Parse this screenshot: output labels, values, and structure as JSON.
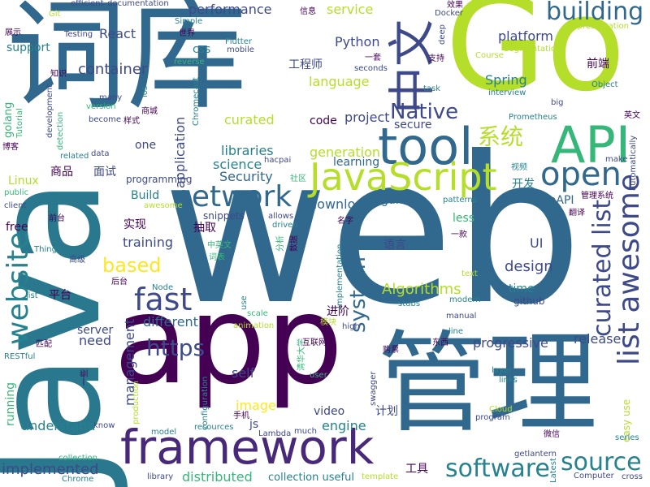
{
  "palette": [
    "#440154",
    "#482878",
    "#3e4989",
    "#31688e",
    "#26828e",
    "#1f9e89",
    "#35b779",
    "#6ece58",
    "#b5de2b",
    "#fde725"
  ],
  "words": [
    {
      "text": "web",
      "color": "#31688e"
    },
    {
      "text": "Java",
      "color": "#2a788e"
    },
    {
      "text": "app",
      "color": "#440154"
    },
    {
      "text": "管理",
      "color": "#31688e"
    },
    {
      "text": "词库",
      "color": "#31688e"
    },
    {
      "text": "Go",
      "color": "#b5de2b"
    },
    {
      "text": "framework",
      "color": "#482878"
    },
    {
      "text": "tool",
      "color": "#31688e"
    },
    {
      "text": "API",
      "color": "#35b779"
    },
    {
      "text": "JavaScript",
      "color": "#b5de2b"
    },
    {
      "text": "中文",
      "color": "#3e4989"
    },
    {
      "text": "network",
      "color": "#31688e"
    },
    {
      "text": "open",
      "color": "#31688e"
    },
    {
      "text": "website",
      "color": "#26828e"
    },
    {
      "text": "list awesome",
      "color": "#3e4989"
    },
    {
      "text": "fast",
      "color": "#3e4989"
    },
    {
      "text": "curated list",
      "color": "#3e4989"
    },
    {
      "text": "software",
      "color": "#26828e"
    },
    {
      "text": "source",
      "color": "#26828e"
    },
    {
      "text": "https",
      "color": "#3e4989"
    },
    {
      "text": "Native",
      "color": "#3e4989"
    },
    {
      "text": "system",
      "color": "#31688e"
    },
    {
      "text": "building",
      "color": "#31688e"
    },
    {
      "text": "based",
      "color": "#fde725"
    },
    {
      "text": "系统",
      "color": "#b5de2b"
    },
    {
      "text": "implemented",
      "color": "#3e4989"
    },
    {
      "text": "Algorithms",
      "color": "#b5de2b"
    },
    {
      "text": "container",
      "color": "#3e4989"
    },
    {
      "text": "platform",
      "color": "#3e4989"
    },
    {
      "text": "performance",
      "color": "#3e4989"
    },
    {
      "text": "language",
      "color": "#b5de2b"
    },
    {
      "text": "management",
      "color": "#3e4989"
    },
    {
      "text": "design",
      "color": "#3e4989"
    },
    {
      "text": "application",
      "color": "#3e4989"
    },
    {
      "text": "progressive",
      "color": "#3e4989"
    },
    {
      "text": "service",
      "color": "#b5de2b"
    },
    {
      "text": "curated",
      "color": "#b5de2b"
    },
    {
      "text": "project",
      "color": "#3e4989"
    },
    {
      "text": "libraries",
      "color": "#26828e"
    },
    {
      "text": "secure",
      "color": "#3e4989"
    },
    {
      "text": "generation",
      "color": "#b5de2b"
    },
    {
      "text": "download",
      "color": "#31688e"
    },
    {
      "text": "science",
      "color": "#26828e"
    },
    {
      "text": "code",
      "color": "#440154"
    },
    {
      "text": "engine",
      "color": "#26828e"
    },
    {
      "text": "release",
      "color": "#3e4989"
    },
    {
      "text": "React",
      "color": "#3e4989"
    },
    {
      "text": "Python",
      "color": "#3e4989"
    },
    {
      "text": "Spring",
      "color": "#26828e"
    },
    {
      "text": "training",
      "color": "#3e4989"
    },
    {
      "text": "Security",
      "color": "#31688e"
    },
    {
      "text": "different",
      "color": "#31688e"
    },
    {
      "text": "learning",
      "color": "#31688e"
    },
    {
      "text": "video",
      "color": "#3e4989"
    },
    {
      "text": "image",
      "color": "#fde725"
    },
    {
      "text": "understand",
      "color": "#26828e"
    },
    {
      "text": "distributed",
      "color": "#35b779"
    },
    {
      "text": "collection useful",
      "color": "#26828e"
    },
    {
      "text": "server",
      "color": "#3e4989"
    },
    {
      "text": "need",
      "color": "#3e4989"
    },
    {
      "text": "self",
      "color": "#3e4989"
    },
    {
      "text": "running",
      "color": "#35b779"
    },
    {
      "text": "guide",
      "color": "#31688e"
    },
    {
      "text": "Build",
      "color": "#26828e"
    },
    {
      "text": "one",
      "color": "#3e4989"
    },
    {
      "text": "time",
      "color": "#26828e"
    },
    {
      "text": "github",
      "color": "#3e4989"
    },
    {
      "text": "OpenAPI",
      "color": "#31688e"
    },
    {
      "text": "UI",
      "color": "#3e4989"
    },
    {
      "text": "less",
      "color": "#35b779"
    },
    {
      "text": "free",
      "color": "#440154"
    },
    {
      "text": "css",
      "color": "#26828e"
    },
    {
      "text": "js",
      "color": "#3e4989"
    },
    {
      "text": "前端",
      "color": "#440154"
    },
    {
      "text": "工程师",
      "color": "#3e4989"
    },
    {
      "text": "商品",
      "color": "#440154"
    },
    {
      "text": "面试",
      "color": "#3e4989"
    },
    {
      "text": "实现",
      "color": "#440154"
    },
    {
      "text": "抽取",
      "color": "#440154"
    },
    {
      "text": "语言",
      "color": "#3e4989"
    },
    {
      "text": "进阶",
      "color": "#440154"
    },
    {
      "text": "开发",
      "color": "#26828e"
    },
    {
      "text": "平台",
      "color": "#440154"
    },
    {
      "text": "计划",
      "color": "#3e4989"
    },
    {
      "text": "工具",
      "color": "#440154"
    },
    {
      "text": "golang",
      "color": "#35b779"
    },
    {
      "text": "Linux",
      "color": "#b5de2b"
    },
    {
      "text": "support",
      "color": "#26828e"
    },
    {
      "text": "programming",
      "color": "#3e4989"
    },
    {
      "text": "Docker",
      "color": "#3e4989"
    },
    {
      "text": "snippets",
      "color": "#3e4989"
    },
    {
      "text": "efficient",
      "color": "#3e4989"
    },
    {
      "text": "documentation",
      "color": "#3e4989"
    },
    {
      "text": "Testing",
      "color": "#3e4989"
    },
    {
      "text": "Flutter",
      "color": "#26828e"
    },
    {
      "text": "mobile",
      "color": "#3e4989"
    },
    {
      "text": "Simple",
      "color": "#26828e"
    },
    {
      "text": "世界",
      "color": "#440154"
    },
    {
      "text": "信息",
      "color": "#440154"
    },
    {
      "text": "Git",
      "color": "#b5de2b"
    },
    {
      "text": "展示",
      "color": "#440154"
    },
    {
      "text": "Representation",
      "color": "#b5de2b"
    },
    {
      "text": "Segmentation",
      "color": "#b5de2b"
    },
    {
      "text": "Course",
      "color": "#b5de2b"
    },
    {
      "text": "支持",
      "color": "#440154"
    },
    {
      "text": "一套",
      "color": "#440154"
    },
    {
      "text": "seconds",
      "color": "#3e4989"
    },
    {
      "text": "reverse",
      "color": "#35b779"
    },
    {
      "text": "Chromecast",
      "color": "#26828e"
    },
    {
      "text": "ios",
      "color": "#26828e"
    },
    {
      "text": "知识",
      "color": "#440154"
    },
    {
      "text": "task",
      "color": "#26828e"
    },
    {
      "text": "interview",
      "color": "#26828e"
    },
    {
      "text": "Object",
      "color": "#26828e"
    },
    {
      "text": "many",
      "color": "#3e4989"
    },
    {
      "text": "version",
      "color": "#35b779"
    },
    {
      "text": "become",
      "color": "#3e4989"
    },
    {
      "text": "development",
      "color": "#3e4989"
    },
    {
      "text": "detection",
      "color": "#35b779"
    },
    {
      "text": "Tutorial",
      "color": "#35b779"
    },
    {
      "text": "商城",
      "color": "#440154"
    },
    {
      "text": "样式",
      "color": "#440154"
    },
    {
      "text": "big",
      "color": "#3e4989"
    },
    {
      "text": "Prometheus",
      "color": "#26828e"
    },
    {
      "text": "英文",
      "color": "#440154"
    },
    {
      "text": "博客",
      "color": "#440154"
    },
    {
      "text": "related",
      "color": "#26828e"
    },
    {
      "text": "data",
      "color": "#3e4989"
    },
    {
      "text": "hacpai",
      "color": "#3e4989"
    },
    {
      "text": "make",
      "color": "#3e4989"
    },
    {
      "text": "视频",
      "color": "#26828e"
    },
    {
      "text": "automatically",
      "color": "#3e4989"
    },
    {
      "text": "public",
      "color": "#35b779"
    },
    {
      "text": "社区",
      "color": "#35b779"
    },
    {
      "text": "patterns",
      "color": "#26828e"
    },
    {
      "text": "管理系统",
      "color": "#440154"
    },
    {
      "text": "client",
      "color": "#3e4989"
    },
    {
      "text": "awesome",
      "color": "#b5de2b"
    },
    {
      "text": "allows",
      "color": "#3e4989"
    },
    {
      "text": "driven",
      "color": "#26828e"
    },
    {
      "text": "翻译",
      "color": "#440154"
    },
    {
      "text": "前台",
      "color": "#440154"
    },
    {
      "text": "名字",
      "color": "#440154"
    },
    {
      "text": "一款",
      "color": "#440154"
    },
    {
      "text": "Things",
      "color": "#26828e"
    },
    {
      "text": "数据",
      "color": "#440154"
    },
    {
      "text": "中英文",
      "color": "#35b779"
    },
    {
      "text": "分析",
      "color": "#35b779"
    },
    {
      "text": "词表",
      "color": "#35b779"
    },
    {
      "text": "高级",
      "color": "#3e4989"
    },
    {
      "text": "Implementation",
      "color": "#26828e"
    },
    {
      "text": "text",
      "color": "#b5de2b"
    },
    {
      "text": "后台",
      "color": "#440154"
    },
    {
      "text": "Node",
      "color": "#26828e"
    },
    {
      "text": "modern",
      "color": "#26828e"
    },
    {
      "text": "list",
      "color": "#26828e"
    },
    {
      "text": "use",
      "color": "#26828e"
    },
    {
      "text": "scale",
      "color": "#35b779"
    },
    {
      "text": "stubs",
      "color": "#26828e"
    },
    {
      "text": "animation",
      "color": "#b5de2b"
    },
    {
      "text": "模块",
      "color": "#b5de2b"
    },
    {
      "text": "manual",
      "color": "#3e4989"
    },
    {
      "text": "high",
      "color": "#3e4989"
    },
    {
      "text": "line",
      "color": "#26828e"
    },
    {
      "text": "匹配",
      "color": "#440154"
    },
    {
      "text": "东西",
      "color": "#440154"
    },
    {
      "text": "购票",
      "color": "#440154"
    },
    {
      "text": "清华大学",
      "color": "#35b779"
    },
    {
      "text": "互联网",
      "color": "#440154"
    },
    {
      "text": "RESTful",
      "color": "#26828e"
    },
    {
      "text": "layer",
      "color": "#26828e"
    },
    {
      "text": "一些",
      "color": "#440154"
    },
    {
      "text": "user",
      "color": "#35b779"
    },
    {
      "text": "swagger",
      "color": "#3e4989"
    },
    {
      "text": "links",
      "color": "#26828e"
    },
    {
      "text": "easy use",
      "color": "#b5de2b"
    },
    {
      "text": "configuration",
      "color": "#26828e"
    },
    {
      "text": "production",
      "color": "#b5de2b"
    },
    {
      "text": "手机",
      "color": "#440154"
    },
    {
      "text": "Lambda",
      "color": "#3e4989"
    },
    {
      "text": "much",
      "color": "#3e4989"
    },
    {
      "text": "program",
      "color": "#3e4989"
    },
    {
      "text": "Cloud",
      "color": "#b5de2b"
    },
    {
      "text": "微信",
      "color": "#440154"
    },
    {
      "text": "series",
      "color": "#26828e"
    },
    {
      "text": "know",
      "color": "#3e4989"
    },
    {
      "text": "model",
      "color": "#26828e"
    },
    {
      "text": "resources",
      "color": "#26828e"
    },
    {
      "text": "collection",
      "color": "#35b779"
    },
    {
      "text": "getlantern",
      "color": "#3e4989"
    },
    {
      "text": "Chrome",
      "color": "#26828e"
    },
    {
      "text": "library",
      "color": "#3e4989"
    },
    {
      "text": "template",
      "color": "#b5de2b"
    },
    {
      "text": "Latest",
      "color": "#26828e"
    },
    {
      "text": "Computer",
      "color": "#3e4989"
    },
    {
      "text": "cross",
      "color": "#3e4989"
    },
    {
      "text": "效果",
      "color": "#440154"
    },
    {
      "text": "deep",
      "color": "#3e4989"
    }
  ]
}
